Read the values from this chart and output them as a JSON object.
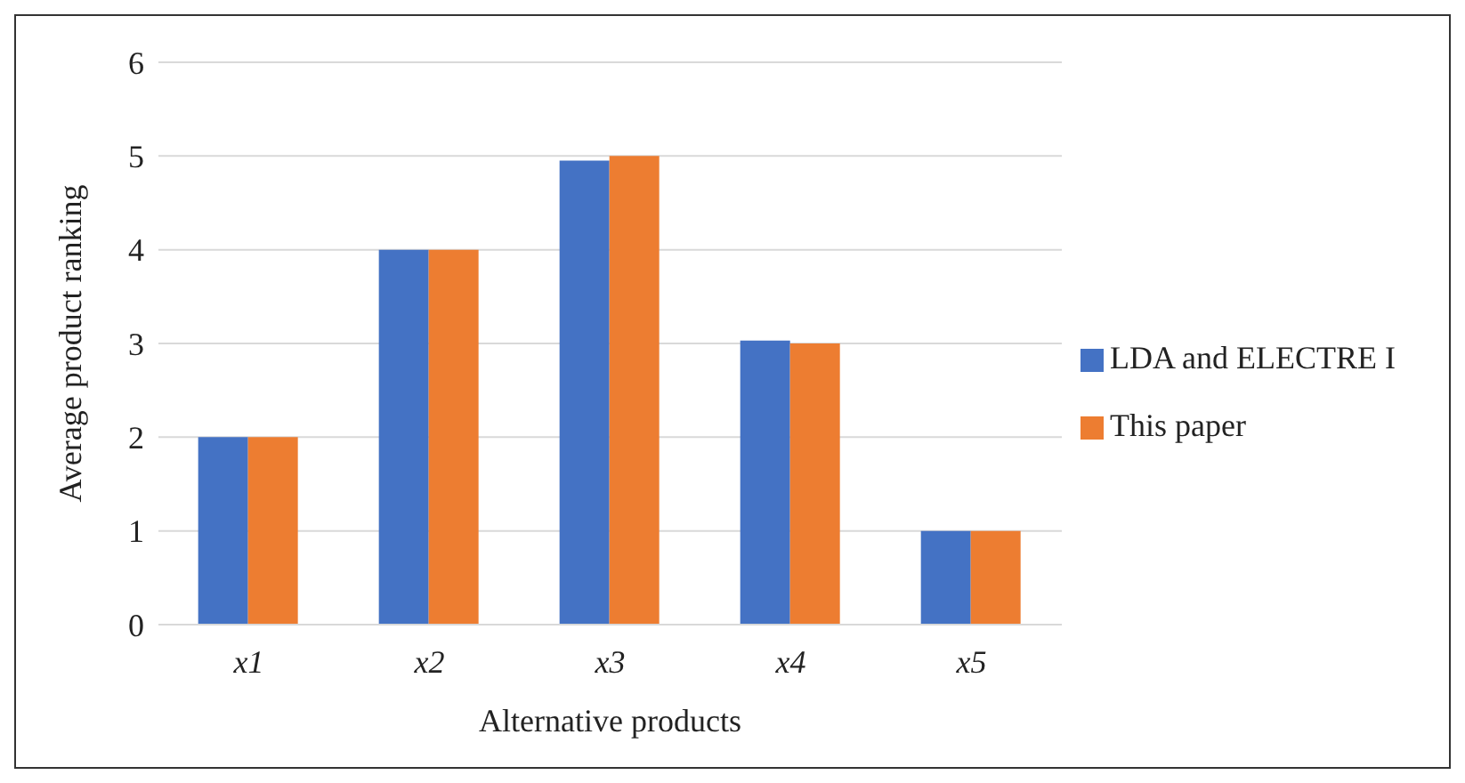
{
  "chart_data": {
    "type": "bar",
    "xlabel": "Alternative products",
    "ylabel": "Average product ranking",
    "categories": [
      "x1",
      "x2",
      "x3",
      "x4",
      "x5"
    ],
    "series": [
      {
        "name": "LDA and ELECTRE I",
        "color": "#4472c4",
        "values": [
          2,
          4,
          4.95,
          3.03,
          1
        ]
      },
      {
        "name": "This paper",
        "color": "#ed7d31",
        "values": [
          2,
          4,
          5,
          3,
          1
        ]
      }
    ],
    "ylim": [
      0,
      6
    ],
    "yticks": [
      0,
      1,
      2,
      3,
      4,
      5,
      6
    ],
    "grid": "y",
    "legend": "right"
  }
}
